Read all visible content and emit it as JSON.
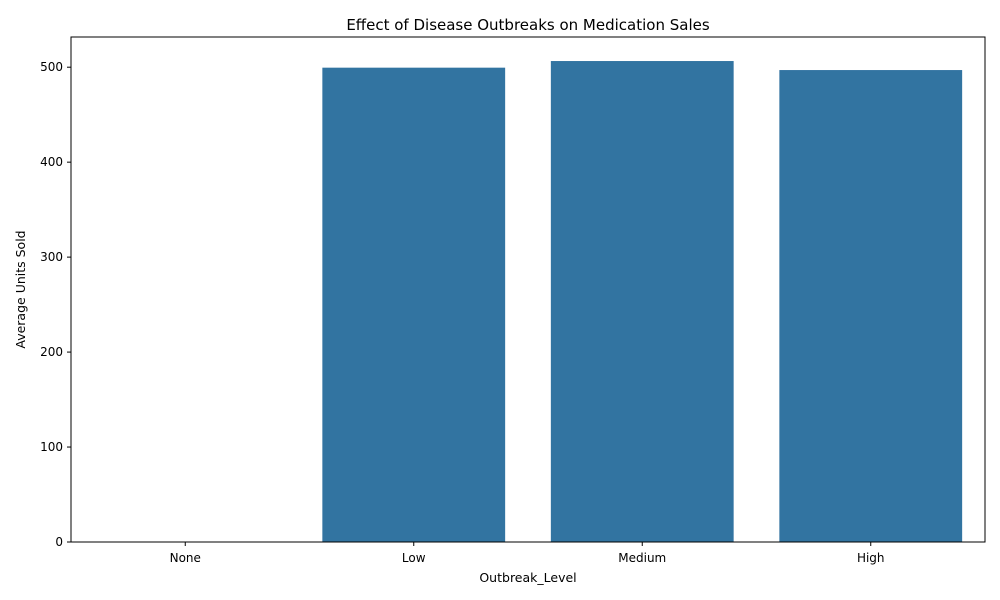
{
  "chart_data": {
    "type": "bar",
    "title": "Effect of Disease Outbreaks on Medication Sales",
    "xlabel": "Outbreak_Level",
    "ylabel": "Average Units Sold",
    "categories": [
      "None",
      "Low",
      "Medium",
      "High"
    ],
    "values": [
      0,
      499.5,
      506.5,
      497.0
    ],
    "ylim": [
      0,
      531.8
    ],
    "yticks": [
      0,
      100,
      200,
      300,
      400,
      500
    ],
    "grid": false,
    "bar_color": "#3274a1"
  }
}
